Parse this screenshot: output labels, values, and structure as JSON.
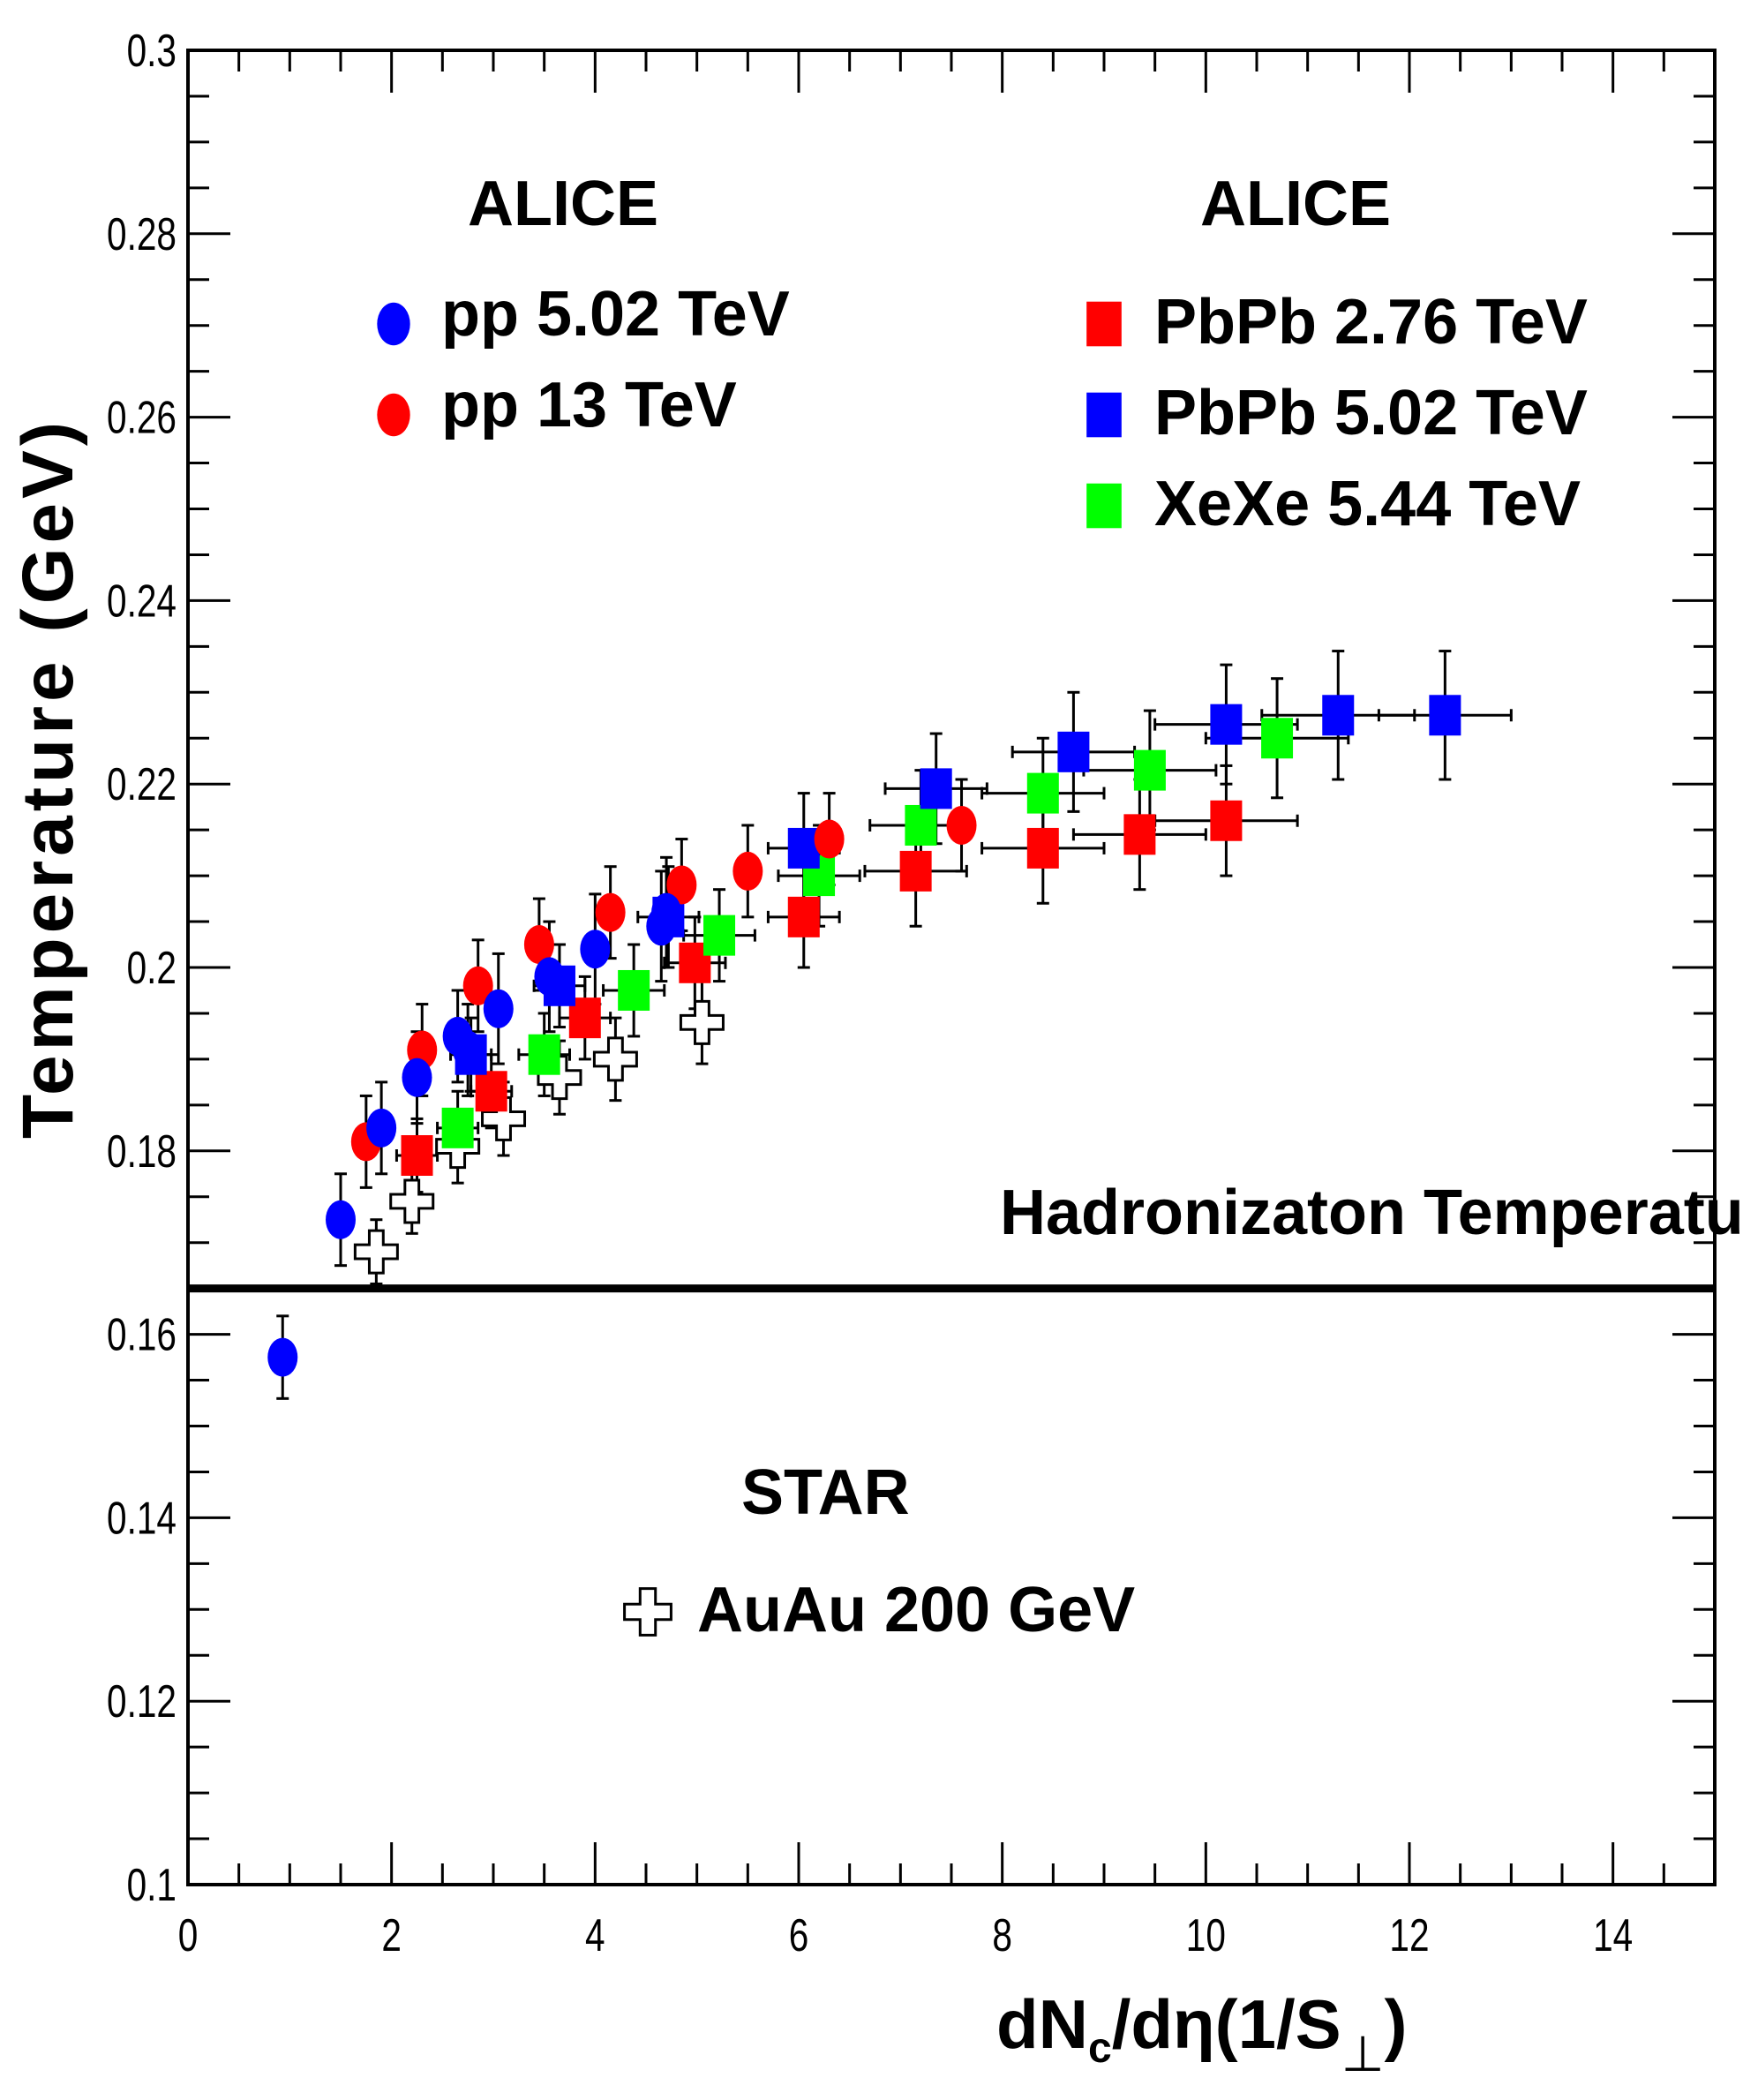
{
  "chart_data": {
    "type": "scatter",
    "xlabel_main": "dN",
    "xlabel_sub": "c",
    "xlabel_mid": "/dη(1/S",
    "xlabel_perp": "⊥",
    "xlabel_close": ")",
    "ylabel": "Temperature (GeV)",
    "xlim": [
      0,
      15
    ],
    "ylim": [
      0.1,
      0.3
    ],
    "xticks": [
      "0",
      "2",
      "4",
      "6",
      "8",
      "10",
      "12",
      "14"
    ],
    "yticks": [
      "0.1",
      "0.12",
      "0.14",
      "0.16",
      "0.18",
      "0.2",
      "0.22",
      "0.24",
      "0.26",
      "0.28",
      "0.3"
    ],
    "divider_y": 0.165,
    "annotations": {
      "alice_left": "ALICE",
      "alice_right": "ALICE",
      "star": "STAR",
      "hadronization": "Hadronizaton Temperature"
    },
    "series": [
      {
        "name": "pp 5.02 TeV",
        "marker": "circle",
        "color": "#0000ff",
        "points": [
          [
            0.93,
            0.1575,
            0,
            0.0045
          ],
          [
            1.5,
            0.1725,
            0,
            0.005
          ],
          [
            1.9,
            0.1825,
            0,
            0.005
          ],
          [
            2.25,
            0.188,
            0,
            0.005
          ],
          [
            2.65,
            0.1925,
            0,
            0.005
          ],
          [
            2.75,
            0.191,
            0,
            0.005
          ],
          [
            3.05,
            0.1955,
            0,
            0.006
          ],
          [
            3.55,
            0.199,
            0,
            0.006
          ],
          [
            4.0,
            0.202,
            0,
            0.006
          ],
          [
            4.65,
            0.2045,
            0,
            0.006
          ],
          [
            4.7,
            0.206,
            0,
            0.006
          ]
        ]
      },
      {
        "name": "pp 13 TeV",
        "marker": "circle",
        "color": "#ff0000",
        "points": [
          [
            1.75,
            0.181,
            0,
            0.005
          ],
          [
            2.3,
            0.191,
            0,
            0.005
          ],
          [
            2.85,
            0.198,
            0,
            0.005
          ],
          [
            3.45,
            0.2025,
            0,
            0.005
          ],
          [
            4.15,
            0.206,
            0,
            0.005
          ],
          [
            4.85,
            0.209,
            0,
            0.005
          ],
          [
            5.5,
            0.2105,
            0,
            0.005
          ],
          [
            6.3,
            0.214,
            0,
            0.005
          ],
          [
            7.6,
            0.2155,
            0,
            0.005
          ]
        ]
      },
      {
        "name": "PbPb 2.76 TeV",
        "marker": "square",
        "color": "#ff0000",
        "points": [
          [
            2.25,
            0.1795,
            0.2,
            0.004
          ],
          [
            2.98,
            0.1865,
            0.2,
            0.004
          ],
          [
            3.9,
            0.1945,
            0.25,
            0.0045
          ],
          [
            4.98,
            0.2005,
            0.3,
            0.005
          ],
          [
            6.05,
            0.2055,
            0.35,
            0.0055
          ],
          [
            7.15,
            0.2105,
            0.5,
            0.006
          ],
          [
            8.4,
            0.213,
            0.6,
            0.006
          ],
          [
            9.35,
            0.2145,
            0.65,
            0.006
          ],
          [
            10.2,
            0.216,
            0.7,
            0.006
          ]
        ]
      },
      {
        "name": "PbPb 5.02 TeV",
        "marker": "square",
        "color": "#0000ff",
        "points": [
          [
            2.78,
            0.1905,
            0.2,
            0.004
          ],
          [
            3.65,
            0.198,
            0.25,
            0.0045
          ],
          [
            4.72,
            0.2055,
            0.3,
            0.0055
          ],
          [
            6.05,
            0.213,
            0.35,
            0.006
          ],
          [
            7.35,
            0.2195,
            0.5,
            0.006
          ],
          [
            8.7,
            0.2235,
            0.6,
            0.0065
          ],
          [
            10.2,
            0.2265,
            0.7,
            0.0065
          ],
          [
            11.3,
            0.2275,
            0.75,
            0.007
          ],
          [
            12.35,
            0.2275,
            0.65,
            0.007
          ]
        ]
      },
      {
        "name": "XeXe 5.44 TeV",
        "marker": "square",
        "color": "#00ff00",
        "points": [
          [
            2.65,
            0.1825,
            0.2,
            0.004
          ],
          [
            3.5,
            0.1905,
            0.25,
            0.0045
          ],
          [
            4.38,
            0.1975,
            0.3,
            0.005
          ],
          [
            5.22,
            0.2035,
            0.35,
            0.005
          ],
          [
            6.2,
            0.21,
            0.4,
            0.0055
          ],
          [
            7.2,
            0.2155,
            0.5,
            0.006
          ],
          [
            8.4,
            0.219,
            0.6,
            0.006
          ],
          [
            9.45,
            0.2215,
            0.65,
            0.0065
          ],
          [
            10.7,
            0.225,
            0.7,
            0.0065
          ]
        ]
      },
      {
        "name": "AuAu 200 GeV",
        "marker": "cross",
        "color": "#000000",
        "points": [
          [
            1.85,
            0.169,
            0,
            0.0035
          ],
          [
            2.2,
            0.1745,
            0,
            0.0035
          ],
          [
            2.65,
            0.1805,
            0,
            0.004
          ],
          [
            3.1,
            0.1835,
            0,
            0.004
          ],
          [
            3.65,
            0.188,
            0,
            0.004
          ],
          [
            4.2,
            0.19,
            0,
            0.0045
          ],
          [
            5.05,
            0.194,
            0,
            0.0045
          ]
        ]
      }
    ],
    "legend_groups": [
      {
        "label": "ALICE",
        "entries": [
          "pp 5.02 TeV",
          "pp 13 TeV"
        ]
      },
      {
        "label": "ALICE",
        "entries": [
          "PbPb 2.76 TeV",
          "PbPb 5.02 TeV",
          "XeXe 5.44 TeV"
        ]
      },
      {
        "label": "STAR",
        "entries": [
          "AuAu 200 GeV"
        ]
      }
    ]
  }
}
